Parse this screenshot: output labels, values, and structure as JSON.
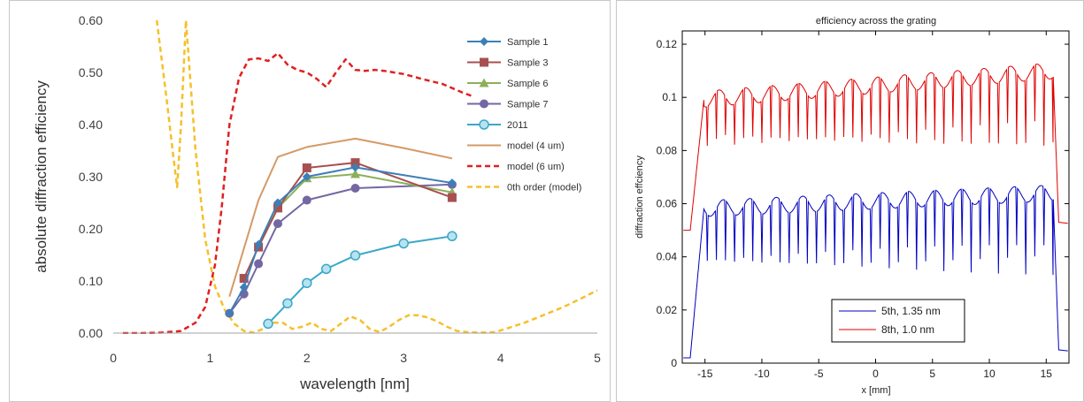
{
  "chart_data": [
    {
      "type": "line",
      "title": "",
      "xlabel": "wavelength [nm]",
      "ylabel": "absolute diffraction efficiency",
      "xlim": [
        0,
        5
      ],
      "ylim": [
        0,
        0.6
      ],
      "x_ticks": [
        "0",
        "1",
        "2",
        "3",
        "4",
        "5"
      ],
      "y_ticks": [
        "0.00",
        "0.10",
        "0.20",
        "0.30",
        "0.40",
        "0.50",
        "0.60"
      ],
      "grid": false,
      "legend_position": "right",
      "series": [
        {
          "name": "Sample 1",
          "color": "#3c7fb8",
          "marker": "diamond",
          "dash": "solid",
          "x": [
            1.2,
            1.35,
            1.5,
            1.7,
            2.0,
            2.5,
            3.5
          ],
          "y": [
            0.038,
            0.088,
            0.17,
            0.25,
            0.3,
            0.318,
            0.288
          ]
        },
        {
          "name": "Sample 3",
          "color": "#a85050",
          "marker": "square",
          "dash": "solid",
          "x": [
            1.35,
            1.5,
            1.7,
            2.0,
            2.5,
            3.5
          ],
          "y": [
            0.105,
            0.165,
            0.24,
            0.317,
            0.327,
            0.26
          ]
        },
        {
          "name": "Sample 6",
          "color": "#8cb05a",
          "marker": "triangle",
          "dash": "solid",
          "x": [
            1.5,
            1.7,
            2.0,
            2.5,
            3.5
          ],
          "y": [
            0.165,
            0.24,
            0.297,
            0.305,
            0.27
          ]
        },
        {
          "name": "Sample 7",
          "color": "#7467a4",
          "marker": "circle",
          "dash": "solid",
          "x": [
            1.2,
            1.35,
            1.5,
            1.7,
            2.0,
            2.5,
            3.5
          ],
          "y": [
            0.038,
            0.075,
            0.133,
            0.21,
            0.255,
            0.278,
            0.285
          ]
        },
        {
          "name": "2011",
          "color": "#3aa8c8",
          "marker": "open-circle",
          "dash": "solid",
          "x": [
            1.6,
            1.8,
            2.0,
            2.2,
            2.5,
            3.0,
            3.5
          ],
          "y": [
            0.018,
            0.057,
            0.096,
            0.123,
            0.149,
            0.172,
            0.186
          ]
        },
        {
          "name": "model (4 um)",
          "color": "#d49a66",
          "marker": "none",
          "dash": "solid",
          "x": [
            1.2,
            1.5,
            1.7,
            2.0,
            2.5,
            3.0,
            3.5
          ],
          "y": [
            0.07,
            0.255,
            0.338,
            0.357,
            0.373,
            0.355,
            0.335
          ]
        },
        {
          "name": "model (6 um)",
          "color": "#e02020",
          "marker": "none",
          "dash": "dash",
          "x": [
            0.1,
            0.3,
            0.5,
            0.7,
            0.85,
            0.95,
            1.05,
            1.12,
            1.2,
            1.3,
            1.4,
            1.5,
            1.6,
            1.7,
            1.8,
            1.9,
            2.0,
            2.1,
            2.2,
            2.3,
            2.4,
            2.5,
            2.6,
            2.7,
            2.8,
            3.0,
            3.2,
            3.4,
            3.6,
            3.7
          ],
          "y": [
            0.0,
            0.0,
            0.001,
            0.004,
            0.02,
            0.05,
            0.13,
            0.24,
            0.4,
            0.49,
            0.525,
            0.527,
            0.522,
            0.537,
            0.515,
            0.505,
            0.5,
            0.488,
            0.472,
            0.5,
            0.525,
            0.505,
            0.503,
            0.505,
            0.503,
            0.497,
            0.487,
            0.478,
            0.462,
            0.455
          ]
        },
        {
          "name": "0th order (model)",
          "color": "#f5c02a",
          "marker": "none",
          "dash": "dash",
          "x": [
            0.45,
            0.55,
            0.62,
            0.66,
            0.7,
            0.75,
            0.85,
            0.95,
            1.05,
            1.15,
            1.25,
            1.35,
            1.45,
            1.55,
            1.65,
            1.75,
            1.85,
            1.95,
            2.05,
            2.15,
            2.25,
            2.35,
            2.45,
            2.55,
            2.65,
            2.75,
            2.85,
            2.95,
            3.05,
            3.15,
            3.25,
            3.35,
            3.45,
            3.55,
            3.65,
            3.75,
            3.85,
            3.95,
            4.05,
            4.25,
            4.45,
            4.65,
            4.85,
            5.0
          ],
          "y": [
            0.6,
            0.45,
            0.34,
            0.28,
            0.4,
            0.6,
            0.35,
            0.18,
            0.09,
            0.045,
            0.018,
            0.004,
            0.001,
            0.008,
            0.02,
            0.02,
            0.008,
            0.012,
            0.02,
            0.008,
            0.004,
            0.018,
            0.032,
            0.025,
            0.008,
            0.002,
            0.012,
            0.025,
            0.034,
            0.034,
            0.03,
            0.022,
            0.012,
            0.004,
            0.002,
            0.001,
            0.001,
            0.002,
            0.008,
            0.02,
            0.035,
            0.05,
            0.068,
            0.082
          ]
        }
      ]
    },
    {
      "type": "line",
      "title": "efficiency across the grating",
      "xlabel": "x [mm]",
      "ylabel": "diffraction effciency",
      "xlim": [
        -17,
        17
      ],
      "ylim": [
        0,
        0.125
      ],
      "x_ticks": [
        "-15",
        "-10",
        "-5",
        "0",
        "5",
        "10",
        "15"
      ],
      "y_ticks": [
        "0",
        "0.02",
        "0.04",
        "0.06",
        "0.08",
        "0.1",
        "0.12"
      ],
      "grid": false,
      "legend_position": "bottom-center",
      "series": [
        {
          "name": "5th, 1.35 nm",
          "color": "#0000c0",
          "line_pitch_mm": 0.8,
          "support_mm": [
            -16.0,
            15.6
          ],
          "baseline_start": 0.002,
          "baseline_end": 0.005,
          "plateau_start": 0.058,
          "plateau_end": 0.064,
          "dip_value": 0.036
        },
        {
          "name": "8th, 1.0 nm",
          "color": "#e00000",
          "line_pitch_mm": 0.8,
          "support_mm": [
            -16.0,
            15.6
          ],
          "baseline_start": 0.05,
          "baseline_end": 0.053,
          "plateau_start": 0.099,
          "plateau_end": 0.11,
          "dip_value": 0.082
        }
      ]
    }
  ]
}
